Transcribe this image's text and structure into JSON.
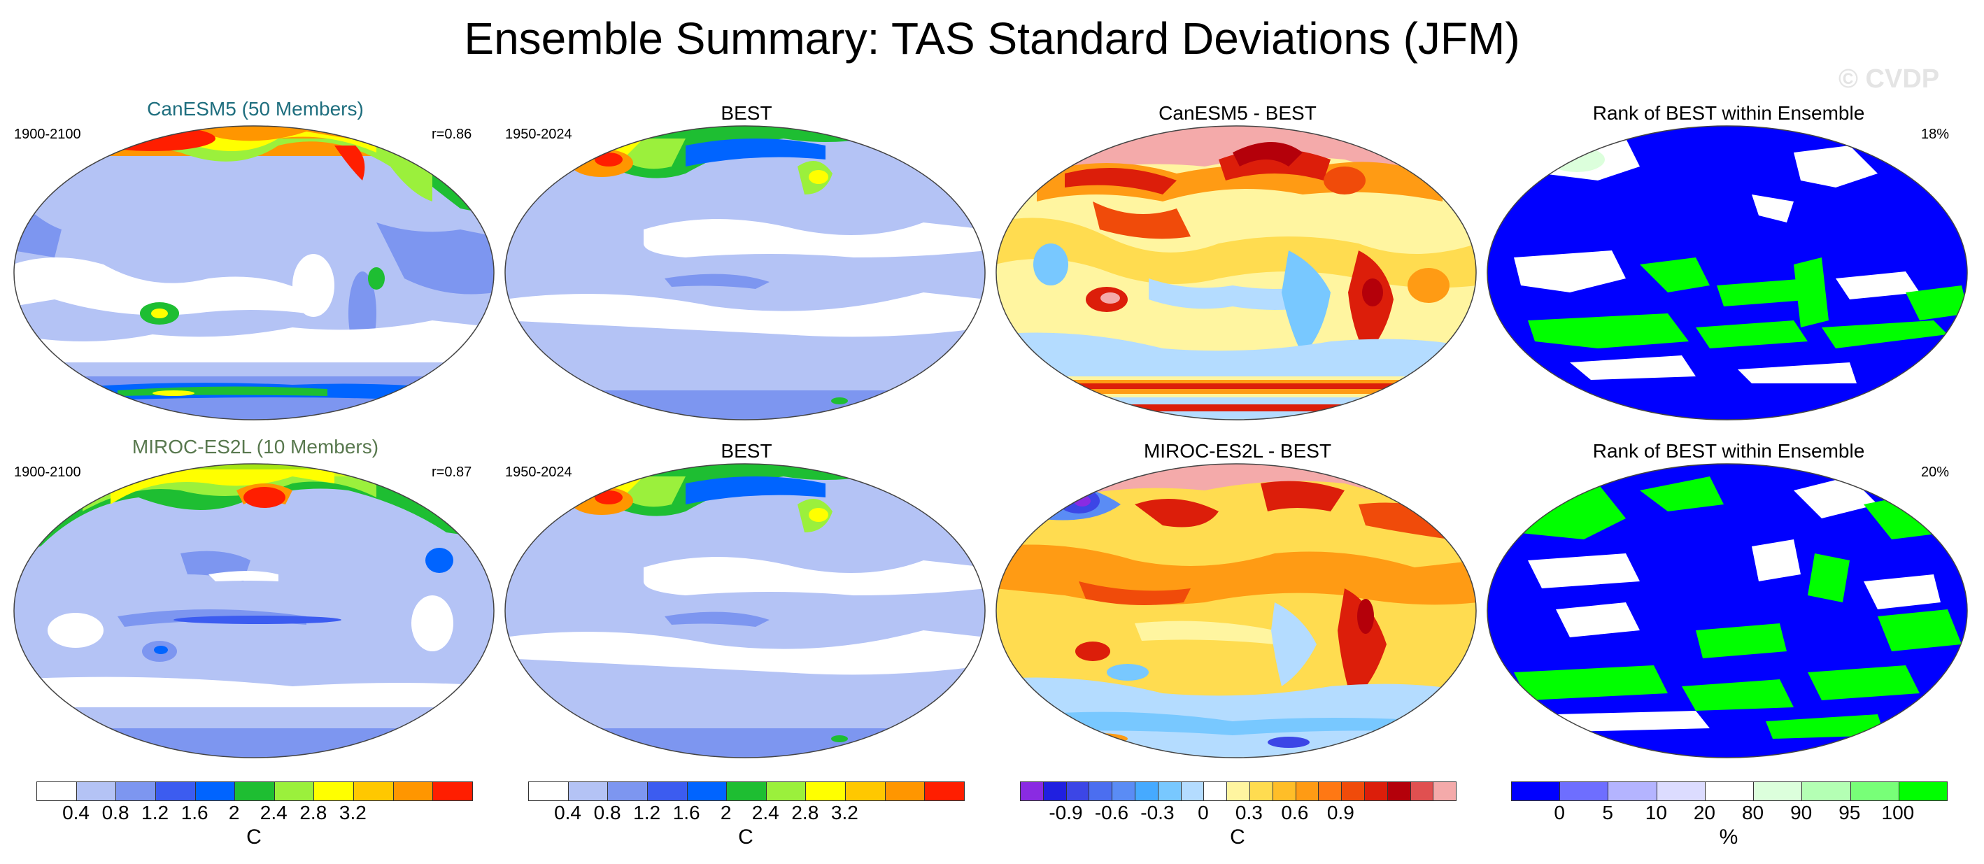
{
  "title": "Ensemble Summary: TAS Standard Deviations (JFM)",
  "watermark": "© CVDP",
  "rows": [
    {
      "model_title": "CanESM5 (50 Members)",
      "model_period": "1900-2100",
      "model_r": "r=0.86",
      "obs_title": "BEST",
      "obs_period": "1950-2024",
      "diff_title": "CanESM5 - BEST",
      "rank_title": "Rank of BEST within Ensemble",
      "rank_pct": "18%"
    },
    {
      "model_title": "MIROC-ES2L (10 Members)",
      "model_period": "1900-2100",
      "model_r": "r=0.87",
      "obs_title": "BEST",
      "obs_period": "1950-2024",
      "diff_title": "MIROC-ES2L - BEST",
      "rank_title": "Rank of BEST within Ensemble",
      "rank_pct": "20%"
    }
  ],
  "colorbars": {
    "std": {
      "unit": "C",
      "labels": [
        "0.4",
        "0.8",
        "1.2",
        "1.6",
        "2",
        "2.4",
        "2.8",
        "3.2"
      ],
      "colors": [
        "#ffffff",
        "#b4c3f5",
        "#7d96f0",
        "#3c5cf0",
        "#0064ff",
        "#1ebe32",
        "#9bf03c",
        "#ffff00",
        "#ffc800",
        "#ff9600",
        "#ff1e00"
      ]
    },
    "diff": {
      "unit": "C",
      "labels": [
        "-0.9",
        "-0.6",
        "-0.3",
        "0",
        "0.3",
        "0.6",
        "0.9"
      ],
      "colors": [
        "#8a2be2",
        "#2020e0",
        "#3c46e6",
        "#4b6ef0",
        "#5a8cf5",
        "#46aaff",
        "#78c8ff",
        "#b4dcff",
        "#ffffff",
        "#fff5a0",
        "#ffdc50",
        "#ffbe28",
        "#ff9b14",
        "#ff7814",
        "#f04b0a",
        "#dc1e0a",
        "#b4000a",
        "#e05050",
        "#f4aaaa"
      ]
    },
    "rank": {
      "unit": "%",
      "labels": [
        "0",
        "5",
        "10",
        "20",
        "80",
        "90",
        "95",
        "100"
      ],
      "colors": [
        "#0000ff",
        "#6e6eff",
        "#b4b4ff",
        "#dcdcff",
        "#ffffff",
        "#dcffdc",
        "#b4ffb4",
        "#78ff78",
        "#00ff00"
      ]
    }
  }
}
